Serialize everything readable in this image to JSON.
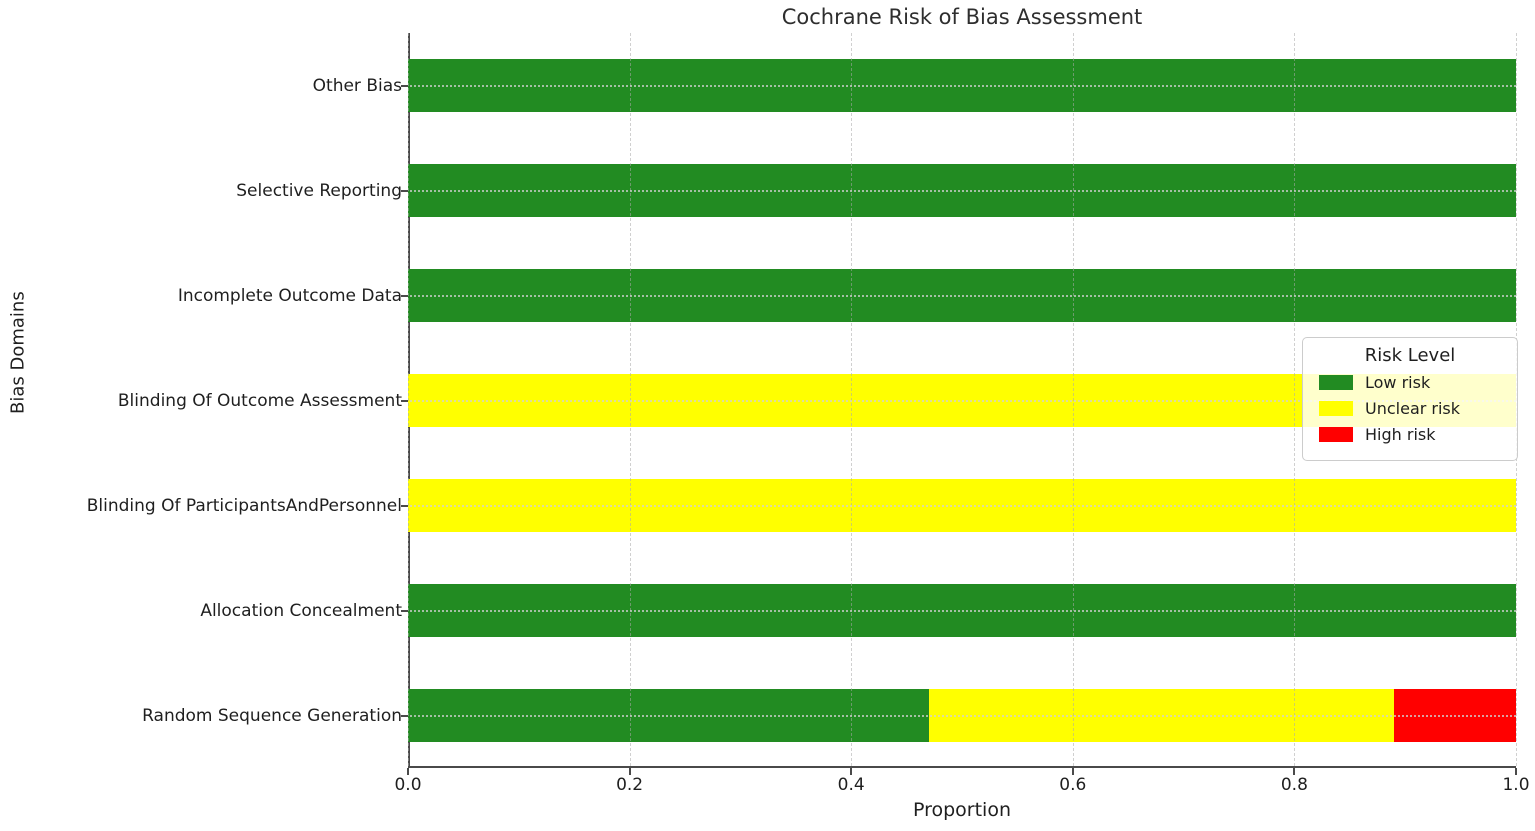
{
  "chart_data": {
    "type": "bar",
    "orientation": "horizontal",
    "stacked": true,
    "title": "Cochrane Risk of Bias Assessment",
    "xlabel": "Proportion",
    "ylabel": "Bias Domains",
    "xlim": [
      0.0,
      1.0
    ],
    "x_ticks": [
      {
        "value": 0.0,
        "label": "0.0"
      },
      {
        "value": 0.2,
        "label": "0.2"
      },
      {
        "value": 0.4,
        "label": "0.4"
      },
      {
        "value": 0.6,
        "label": "0.6"
      },
      {
        "value": 0.8,
        "label": "0.8"
      },
      {
        "value": 1.0,
        "label": "1.0"
      }
    ],
    "categories": [
      "Other Bias",
      "Selective Reporting",
      "Incomplete Outcome Data",
      "Blinding Of Outcome Assessment",
      "Blinding Of ParticipantsAndPersonnel",
      "Allocation Concealment",
      "Random Sequence Generation"
    ],
    "series": [
      {
        "name": "Low risk",
        "color": "#228b22",
        "values": [
          1.0,
          1.0,
          1.0,
          0.0,
          0.0,
          1.0,
          0.47
        ]
      },
      {
        "name": "Unclear risk",
        "color": "#ffff00",
        "values": [
          0.0,
          0.0,
          0.0,
          1.0,
          1.0,
          0.0,
          0.42
        ]
      },
      {
        "name": "High risk",
        "color": "#ff0000",
        "values": [
          0.0,
          0.0,
          0.0,
          0.0,
          0.0,
          0.0,
          0.11
        ]
      }
    ],
    "legend": {
      "title": "Risk Level",
      "position": "center right",
      "entries": [
        "Low risk",
        "Unclear risk",
        "High risk"
      ]
    },
    "grid": true,
    "bar_height_fraction": 0.5
  }
}
